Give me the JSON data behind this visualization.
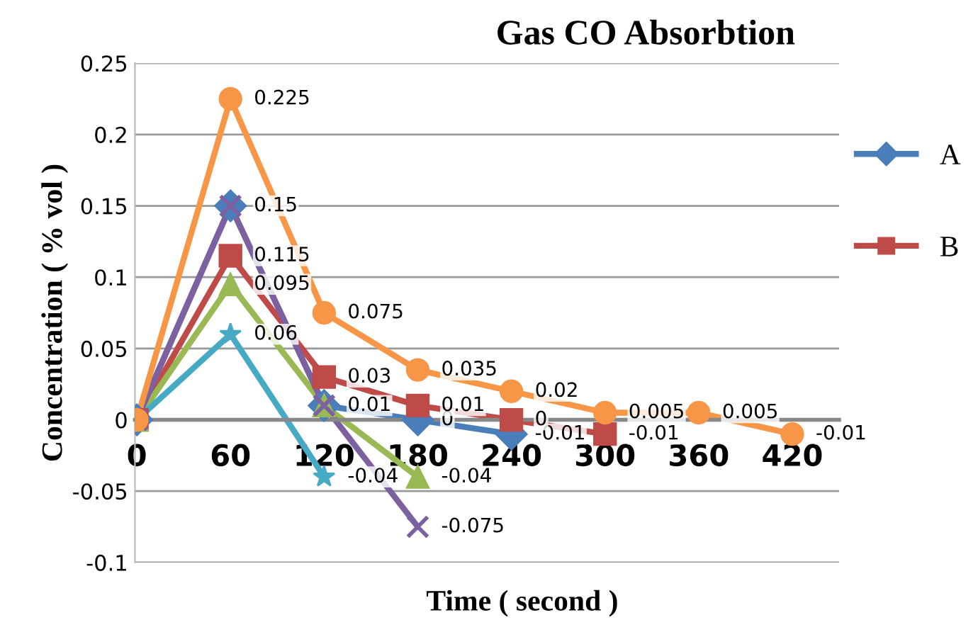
{
  "chart_data": {
    "type": "line",
    "title": "Gas CO Absorbtion",
    "xlabel": "Time ( second )",
    "ylabel": "Concentration ( % vol )",
    "categories": [
      "0",
      "60",
      "120",
      "180",
      "240",
      "300",
      "360",
      "420"
    ],
    "series": [
      {
        "name": "A",
        "color": "#4a7ebb",
        "marker": "diamond",
        "values": [
          0,
          0.15,
          0.01,
          0,
          -0.01,
          null,
          null,
          null
        ],
        "value_labels": [
          null,
          null,
          "0.01",
          "0",
          "-0.01",
          null,
          null,
          null
        ]
      },
      {
        "name": "B",
        "color": "#be4b48",
        "marker": "square",
        "values": [
          0,
          0.115,
          0.03,
          0.01,
          0,
          -0.01,
          null,
          null
        ],
        "value_labels": [
          null,
          "0.115",
          "0.03",
          "0.01",
          "0",
          "-0.01",
          null,
          null
        ]
      },
      {
        "color": "#98b954",
        "marker": "triangle",
        "values": [
          0,
          0.095,
          0.01,
          -0.04,
          null,
          null,
          null,
          null
        ],
        "value_labels": [
          null,
          "0.095",
          null,
          "-0.04",
          null,
          null,
          null,
          null
        ]
      },
      {
        "color": "#7d60a0",
        "marker": "cross",
        "values": [
          0,
          0.15,
          0.01,
          -0.075,
          null,
          null,
          null,
          null
        ],
        "value_labels": [
          null,
          "0.15",
          null,
          "-0.075",
          null,
          null,
          null,
          null
        ]
      },
      {
        "color": "#46aac5",
        "marker": "star",
        "values": [
          0,
          0.06,
          -0.04,
          null,
          null,
          null,
          null,
          null
        ],
        "value_labels": [
          null,
          "0.06",
          "-0.04",
          null,
          null,
          null,
          null,
          null
        ]
      },
      {
        "color": "#f79646",
        "marker": "circle",
        "values": [
          0,
          0.225,
          0.075,
          0.035,
          0.02,
          0.005,
          0.005,
          -0.01
        ],
        "value_labels": [
          null,
          "0.225",
          "0.075",
          "0.035",
          "0.02",
          "0.005",
          "0.005",
          "-0.01"
        ]
      }
    ],
    "ylim": [
      -0.1,
      0.25
    ],
    "yticks": [
      -0.1,
      -0.05,
      0,
      0.05,
      0.1,
      0.15,
      0.2,
      0.25
    ],
    "grid": "y",
    "legend": "right",
    "line_style": "solid"
  }
}
